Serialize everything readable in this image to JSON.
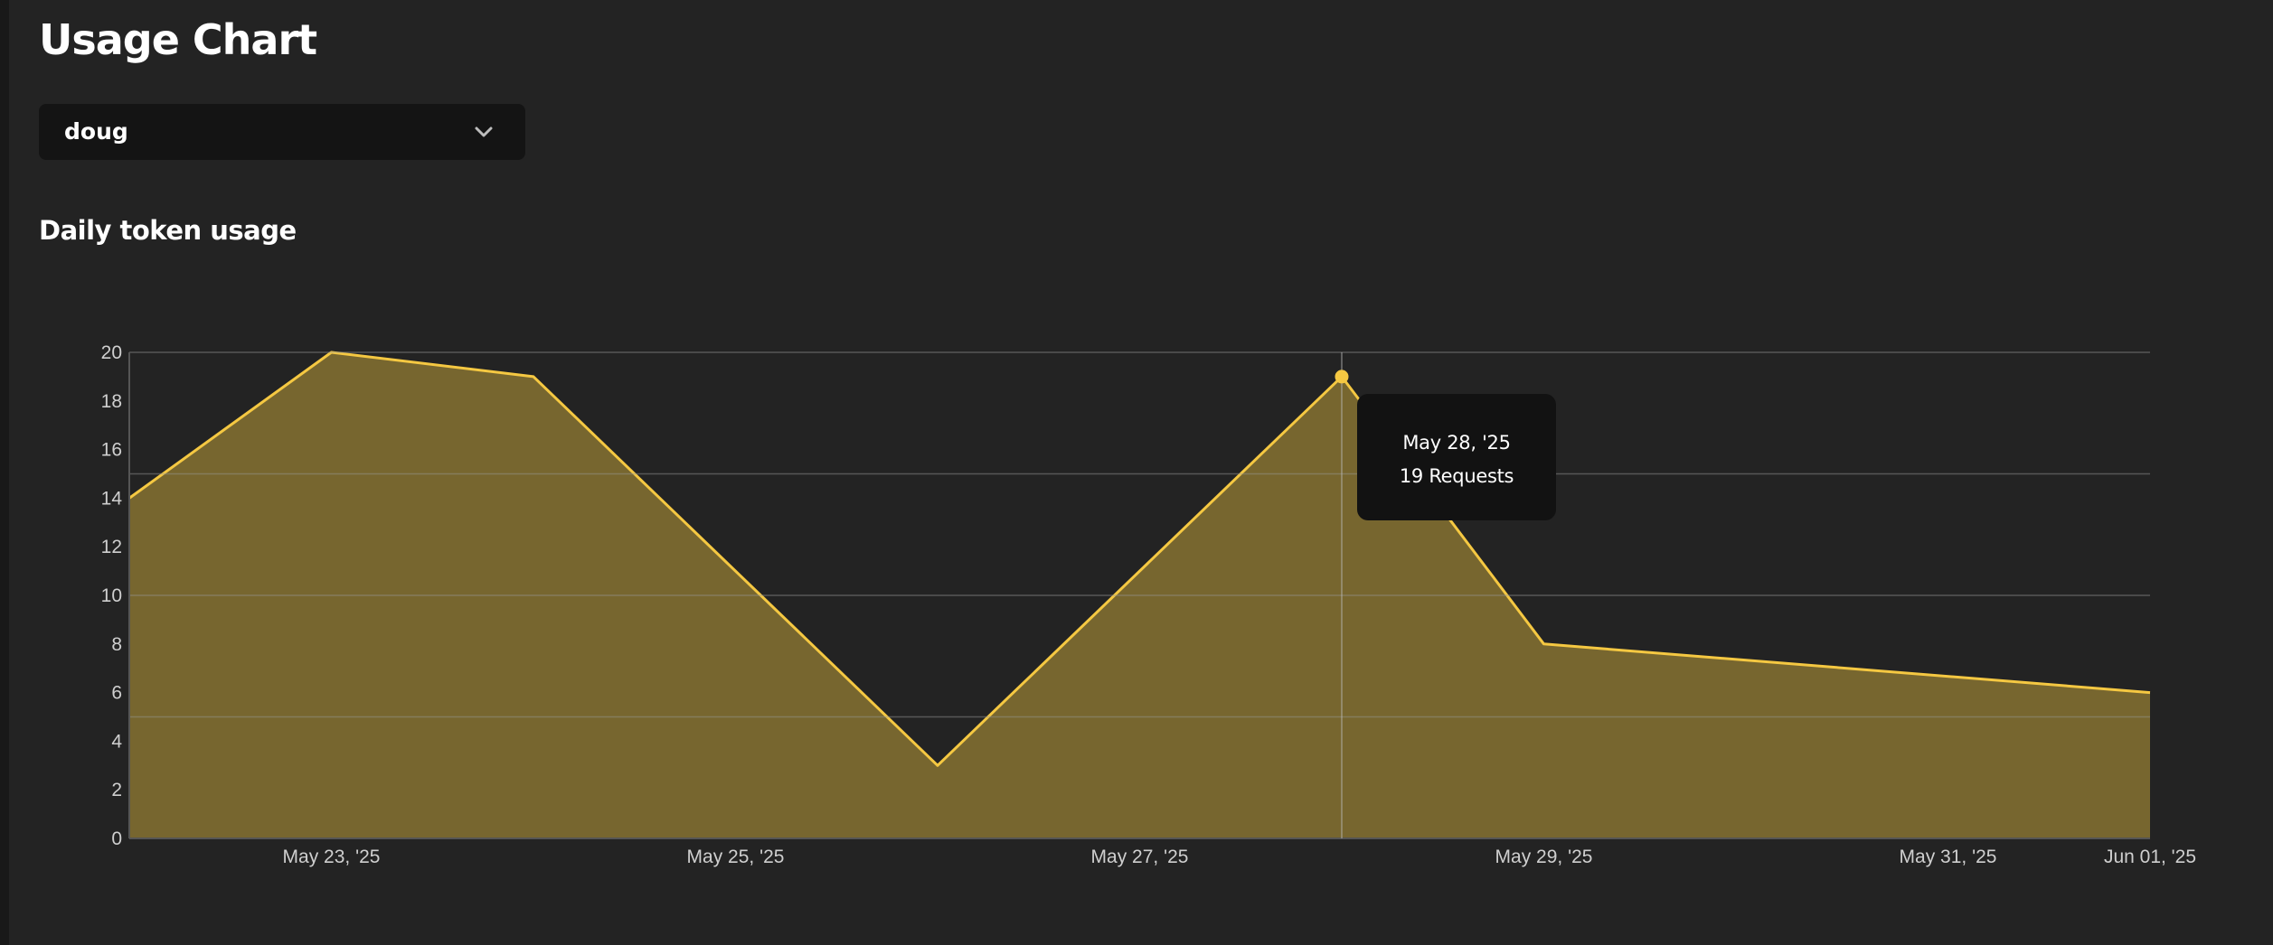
{
  "page": {
    "title": "Usage Chart"
  },
  "user_select": {
    "value": "doug",
    "icon": "chevron-down-icon"
  },
  "section": {
    "title": "Daily token usage"
  },
  "colors": {
    "line": "#f5c842",
    "area_fill": "#77662f",
    "grid": "#4a4a4a",
    "tooltip_bg": "#121212",
    "background": "#232323"
  },
  "tooltip": {
    "date": "May 28, '25",
    "value_text": "19 Requests"
  },
  "chart_data": {
    "type": "area",
    "title": "",
    "xlabel": "",
    "ylabel": "",
    "x": [
      "2025-05-22",
      "2025-05-23",
      "2025-05-24",
      "2025-05-25",
      "2025-05-26",
      "2025-05-27",
      "2025-05-28",
      "2025-05-29",
      "2025-05-30",
      "2025-05-31",
      "2025-06-01"
    ],
    "series": [
      {
        "values": [
          14,
          20,
          19,
          null,
          3,
          null,
          19,
          8,
          null,
          null,
          6
        ]
      }
    ],
    "ylim": [
      0,
      20
    ],
    "yticks": [
      0,
      2,
      4,
      6,
      8,
      10,
      12,
      14,
      16,
      18,
      20
    ],
    "xticks": [
      {
        "x": "2025-05-23",
        "label": "May 23, '25"
      },
      {
        "x": "2025-05-25",
        "label": "May 25, '25"
      },
      {
        "x": "2025-05-27",
        "label": "May 27, '25"
      },
      {
        "x": "2025-05-29",
        "label": "May 29, '25"
      },
      {
        "x": "2025-05-31",
        "label": "May 31, '25"
      },
      {
        "x": "2025-06-01",
        "label": "Jun 01, '25"
      }
    ],
    "gridlines_y": [
      5,
      10,
      15,
      20
    ],
    "highlight": {
      "x": "2025-05-28",
      "y": 19
    },
    "grid": true,
    "legend": "none"
  }
}
